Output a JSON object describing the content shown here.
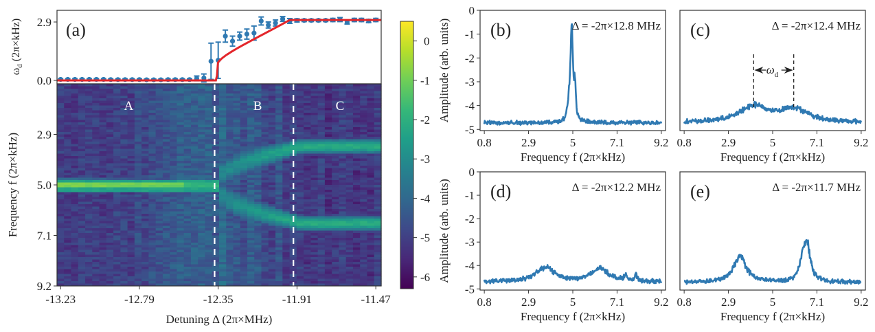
{
  "figure": {
    "colors": {
      "data_blue": "#2f79b2",
      "fit_red": "#e3262b",
      "axis": "#333333",
      "viridis": [
        "#440154",
        "#482878",
        "#3e4989",
        "#31688e",
        "#26828e",
        "#1f9e89",
        "#35b779",
        "#6ece58",
        "#b5de2b",
        "#fde725"
      ]
    }
  },
  "chart_data": [
    {
      "id": "a-top",
      "type": "scatter",
      "panel_label": "(a)",
      "ylabel": "ω_d (2π×kHz)",
      "yticks": [
        "0.0",
        "2.9"
      ],
      "ylim": [
        0.0,
        3.2
      ],
      "xlim": [
        -13.25,
        -11.44
      ],
      "points": {
        "x": [
          -13.23,
          -13.19,
          -13.15,
          -13.11,
          -13.07,
          -13.03,
          -12.99,
          -12.95,
          -12.91,
          -12.87,
          -12.83,
          -12.79,
          -12.75,
          -12.71,
          -12.67,
          -12.63,
          -12.59,
          -12.55,
          -12.51,
          -12.47,
          -12.43,
          -12.39,
          -12.35,
          -12.31,
          -12.27,
          -12.23,
          -12.19,
          -12.15,
          -12.11,
          -12.07,
          -12.03,
          -11.99,
          -11.95,
          -11.91,
          -11.87,
          -11.83,
          -11.79,
          -11.75,
          -11.71,
          -11.67,
          -11.63,
          -11.59,
          -11.55,
          -11.51,
          -11.47
        ],
        "y": [
          0.05,
          0.05,
          0.05,
          0.05,
          0.05,
          0.05,
          0.05,
          0.04,
          0.04,
          0.04,
          0.04,
          0.04,
          0.03,
          0.03,
          0.03,
          0.04,
          0.04,
          0.04,
          0.04,
          0.1,
          0.12,
          0.95,
          1.0,
          2.2,
          1.95,
          2.2,
          2.3,
          2.35,
          2.95,
          2.75,
          2.85,
          3.05,
          2.95,
          2.98,
          2.98,
          2.98,
          2.98,
          2.98,
          3.0,
          3.02,
          2.9,
          3.0,
          3.0,
          2.95,
          3.0
        ],
        "yerr": [
          0.04,
          0.04,
          0.04,
          0.04,
          0.04,
          0.04,
          0.04,
          0.04,
          0.04,
          0.04,
          0.04,
          0.04,
          0.04,
          0.04,
          0.04,
          0.04,
          0.04,
          0.04,
          0.04,
          0.12,
          0.2,
          0.9,
          0.9,
          0.3,
          0.25,
          0.2,
          0.25,
          0.35,
          0.2,
          0.15,
          0.15,
          0.12,
          0.12,
          0.08,
          0.06,
          0.06,
          0.06,
          0.06,
          0.08,
          0.1,
          0.1,
          0.08,
          0.08,
          0.08,
          0.08
        ]
      },
      "fit": {
        "onset": -12.36,
        "plateau_start": -11.95,
        "plateau_value": 3.0,
        "description": "red curve: zero below onset, sqrt-like rise, flat plateau"
      }
    },
    {
      "id": "a-heatmap",
      "type": "heatmap",
      "xlabel": "Detuning Δ (2π×MHz)",
      "ylabel": "Frequency f (2π×kHz)",
      "xticks": [
        "-13.23",
        "-12.79",
        "-12.35",
        "-11.91",
        "-11.47"
      ],
      "xtick_values": [
        -13.23,
        -12.79,
        -12.35,
        -11.91,
        -11.47
      ],
      "yticks": [
        "2.9",
        "5.0",
        "7.1",
        "9.2"
      ],
      "ytick_values": [
        2.9,
        5.0,
        7.1,
        9.2
      ],
      "xlim": [
        -13.25,
        -11.44
      ],
      "ylim": [
        0.8,
        9.2
      ],
      "region_labels": [
        {
          "text": "A",
          "x": -12.85
        },
        {
          "text": "B",
          "x": -12.13
        },
        {
          "text": "C",
          "x": -11.67
        }
      ],
      "region_boundaries": [
        -12.37,
        -11.93
      ],
      "bands": [
        {
          "region": "A",
          "center_freq": 5.0,
          "peak_log_amp": 0.2
        },
        {
          "region": "B/C",
          "center_freq_start": 5.0,
          "center_freq_end": 3.4,
          "peak_log_amp": -2.0
        },
        {
          "region": "B/C",
          "center_freq_start": 5.0,
          "center_freq_end": 6.6,
          "peak_log_amp": -2.0
        }
      ],
      "background_log_amp": -5.0,
      "colorbar": {
        "ticks": [
          "0",
          "-1",
          "-2",
          "-3",
          "-4",
          "-5",
          "-6"
        ],
        "tick_values": [
          0,
          -1,
          -2,
          -3,
          -4,
          -5,
          -6
        ],
        "range": [
          -6.3,
          0.5
        ],
        "colormap": "viridis"
      }
    },
    {
      "id": "b",
      "type": "line",
      "panel_label": "(b)",
      "annotation": "Δ = -2π×12.8 MHz",
      "xlabel": "Frequency f (2π×kHz)",
      "ylabel": "Amplitude (arb. units)",
      "xticks": [
        "0.8",
        "2.9",
        "5",
        "7.1",
        "9.2"
      ],
      "yticks": [
        "0",
        "-1",
        "-2",
        "-3",
        "-4",
        "-5"
      ],
      "xlim": [
        0.6,
        9.4
      ],
      "ylim": [
        -5.05,
        0
      ],
      "baseline": -4.72,
      "peaks": [
        {
          "f": 4.95,
          "amp": -0.85,
          "width": 0.06
        },
        {
          "f": 5.1,
          "amp": -3.4,
          "width": 0.05
        },
        {
          "f": 4.85,
          "amp": -3.9,
          "width": 0.1
        }
      ]
    },
    {
      "id": "c",
      "type": "line",
      "panel_label": "(c)",
      "annotation": "Δ = -2π×12.4 MHz",
      "xlabel": "Frequency f (2π×kHz)",
      "ylabel": "",
      "xticks": [
        "0.8",
        "2.9",
        "5",
        "7.1",
        "9.2"
      ],
      "yticks": [],
      "xlim": [
        0.6,
        9.4
      ],
      "ylim": [
        -5.05,
        0
      ],
      "baseline": -4.72,
      "peaks": [
        {
          "f": 4.1,
          "amp": -4.05,
          "width": 0.8
        },
        {
          "f": 6.0,
          "amp": -4.15,
          "width": 0.8
        }
      ],
      "omega_d_marker": {
        "label": "ω_d",
        "f_left": 4.1,
        "f_right": 6.0
      }
    },
    {
      "id": "d",
      "type": "line",
      "panel_label": "(d)",
      "annotation": "Δ = -2π×12.2 MHz",
      "xlabel": "Frequency f (2π×kHz)",
      "ylabel": "Amplitude (arb. units)",
      "xticks": [
        "0.8",
        "2.9",
        "5",
        "7.1",
        "9.2"
      ],
      "yticks": [
        "0",
        "-1",
        "-2",
        "-3",
        "-4",
        "-5"
      ],
      "xlim": [
        0.6,
        9.4
      ],
      "ylim": [
        -5.05,
        0
      ],
      "baseline": -4.7,
      "peaks": [
        {
          "f": 3.7,
          "amp": -4.1,
          "width": 0.55
        },
        {
          "f": 6.3,
          "amp": -4.15,
          "width": 0.5
        },
        {
          "f": 7.5,
          "amp": -4.5,
          "width": 0.1
        },
        {
          "f": 8.0,
          "amp": -4.45,
          "width": 0.06
        }
      ]
    },
    {
      "id": "e",
      "type": "line",
      "panel_label": "(e)",
      "annotation": "Δ = -2π×11.7 MHz",
      "xlabel": "Frequency f (2π×kHz)",
      "ylabel": "",
      "xticks": [
        "0.8",
        "2.9",
        "5",
        "7.1",
        "9.2"
      ],
      "yticks": [],
      "xlim": [
        0.6,
        9.4
      ],
      "ylim": [
        -5.05,
        0
      ],
      "baseline": -4.72,
      "peaks": [
        {
          "f": 3.45,
          "amp": -3.6,
          "width": 0.35
        },
        {
          "f": 6.65,
          "amp": -3.45,
          "width": 0.18
        },
        {
          "f": 6.45,
          "amp": -3.85,
          "width": 0.2
        }
      ]
    }
  ]
}
